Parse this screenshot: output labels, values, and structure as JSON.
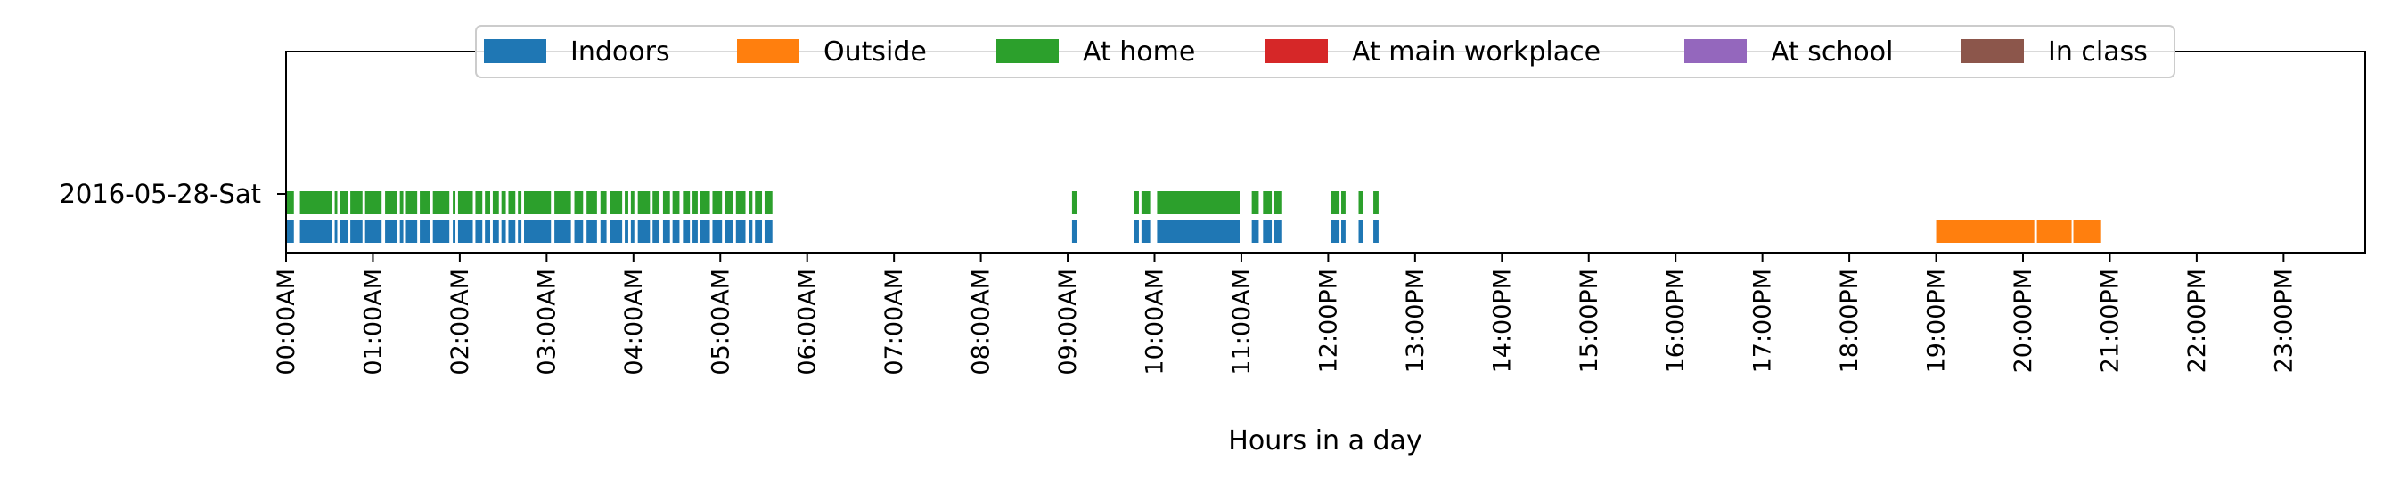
{
  "chart_data": {
    "type": "broken_barh",
    "title": "",
    "xlabel": "Hours in a day",
    "ylabel": "",
    "xlim": [
      0,
      24
    ],
    "y_categories": [
      "2016-05-28-Sat"
    ],
    "x_ticks": [
      0,
      1,
      2,
      3,
      4,
      5,
      6,
      7,
      8,
      9,
      10,
      11,
      12,
      13,
      14,
      15,
      16,
      17,
      18,
      19,
      20,
      21,
      22,
      23
    ],
    "x_tick_labels": [
      "00:00AM",
      "01:00AM",
      "02:00AM",
      "03:00AM",
      "04:00AM",
      "05:00AM",
      "06:00AM",
      "07:00AM",
      "08:00AM",
      "09:00AM",
      "10:00AM",
      "11:00AM",
      "12:00PM",
      "13:00PM",
      "14:00PM",
      "15:00PM",
      "16:00PM",
      "17:00PM",
      "18:00PM",
      "19:00PM",
      "20:00PM",
      "21:00PM",
      "22:00PM",
      "23:00PM"
    ],
    "grid": false,
    "legend": {
      "placement": "upper-center",
      "columns": 6,
      "entries": [
        "Indoors",
        "Outside",
        "At home",
        "At main workplace",
        "At school",
        "In class"
      ]
    },
    "series": [
      {
        "name": "Indoors",
        "color": "#1f77b4",
        "intervals": [
          [
            0.0,
            0.09
          ],
          [
            0.16,
            0.53
          ],
          [
            0.56,
            0.59
          ],
          [
            0.62,
            0.71
          ],
          [
            0.74,
            0.88
          ],
          [
            0.91,
            1.1
          ],
          [
            1.14,
            1.28
          ],
          [
            1.31,
            1.35
          ],
          [
            1.38,
            1.51
          ],
          [
            1.54,
            1.66
          ],
          [
            1.69,
            1.88
          ],
          [
            1.92,
            1.95
          ],
          [
            1.98,
            2.15
          ],
          [
            2.18,
            2.26
          ],
          [
            2.29,
            2.35
          ],
          [
            2.38,
            2.45
          ],
          [
            2.48,
            2.53
          ],
          [
            2.56,
            2.64
          ],
          [
            2.67,
            2.71
          ],
          [
            2.74,
            3.05
          ],
          [
            3.09,
            3.28
          ],
          [
            3.32,
            3.42
          ],
          [
            3.46,
            3.58
          ],
          [
            3.62,
            3.69
          ],
          [
            3.73,
            3.87
          ],
          [
            3.9,
            3.94
          ],
          [
            3.97,
            4.01
          ],
          [
            4.05,
            4.19
          ],
          [
            4.22,
            4.3
          ],
          [
            4.34,
            4.42
          ],
          [
            4.45,
            4.53
          ],
          [
            4.57,
            4.65
          ],
          [
            4.68,
            4.74
          ],
          [
            4.77,
            4.88
          ],
          [
            4.91,
            5.02
          ],
          [
            5.05,
            5.15
          ],
          [
            5.18,
            5.29
          ],
          [
            5.33,
            5.37
          ],
          [
            5.4,
            5.48
          ],
          [
            5.51,
            5.6
          ],
          [
            9.05,
            9.11
          ],
          [
            9.76,
            9.82
          ],
          [
            9.85,
            9.95
          ],
          [
            10.03,
            10.98
          ],
          [
            11.12,
            11.2
          ],
          [
            11.25,
            11.35
          ],
          [
            11.38,
            11.46
          ],
          [
            12.03,
            12.13
          ],
          [
            12.15,
            12.2
          ],
          [
            12.35,
            12.4
          ],
          [
            12.52,
            12.58
          ]
        ]
      },
      {
        "name": "Outside",
        "color": "#ff7f0e",
        "intervals": [
          [
            19.0,
            20.13
          ],
          [
            20.16,
            20.56
          ],
          [
            20.58,
            20.9
          ]
        ]
      },
      {
        "name": "At home",
        "color": "#2ca02c",
        "intervals": [
          [
            0.0,
            0.09
          ],
          [
            0.16,
            0.53
          ],
          [
            0.56,
            0.59
          ],
          [
            0.62,
            0.71
          ],
          [
            0.74,
            0.88
          ],
          [
            0.91,
            1.1
          ],
          [
            1.14,
            1.28
          ],
          [
            1.31,
            1.35
          ],
          [
            1.38,
            1.51
          ],
          [
            1.54,
            1.66
          ],
          [
            1.69,
            1.88
          ],
          [
            1.92,
            1.95
          ],
          [
            1.98,
            2.15
          ],
          [
            2.18,
            2.26
          ],
          [
            2.29,
            2.35
          ],
          [
            2.38,
            2.45
          ],
          [
            2.48,
            2.53
          ],
          [
            2.56,
            2.64
          ],
          [
            2.67,
            2.71
          ],
          [
            2.74,
            3.05
          ],
          [
            3.09,
            3.28
          ],
          [
            3.32,
            3.42
          ],
          [
            3.46,
            3.58
          ],
          [
            3.62,
            3.69
          ],
          [
            3.73,
            3.87
          ],
          [
            3.9,
            3.94
          ],
          [
            3.97,
            4.01
          ],
          [
            4.05,
            4.19
          ],
          [
            4.22,
            4.3
          ],
          [
            4.34,
            4.42
          ],
          [
            4.45,
            4.53
          ],
          [
            4.57,
            4.65
          ],
          [
            4.68,
            4.74
          ],
          [
            4.77,
            4.88
          ],
          [
            4.91,
            5.02
          ],
          [
            5.05,
            5.15
          ],
          [
            5.18,
            5.29
          ],
          [
            5.33,
            5.37
          ],
          [
            5.4,
            5.48
          ],
          [
            5.51,
            5.6
          ],
          [
            9.05,
            9.11
          ],
          [
            9.76,
            9.82
          ],
          [
            9.85,
            9.95
          ],
          [
            10.03,
            10.98
          ],
          [
            11.12,
            11.2
          ],
          [
            11.25,
            11.35
          ],
          [
            11.38,
            11.46
          ],
          [
            12.03,
            12.13
          ],
          [
            12.15,
            12.2
          ],
          [
            12.35,
            12.4
          ],
          [
            12.52,
            12.58
          ]
        ]
      },
      {
        "name": "At main workplace",
        "color": "#d62728",
        "intervals": []
      },
      {
        "name": "At school",
        "color": "#9467bd",
        "intervals": []
      },
      {
        "name": "In class",
        "color": "#8c564b",
        "intervals": []
      }
    ]
  }
}
